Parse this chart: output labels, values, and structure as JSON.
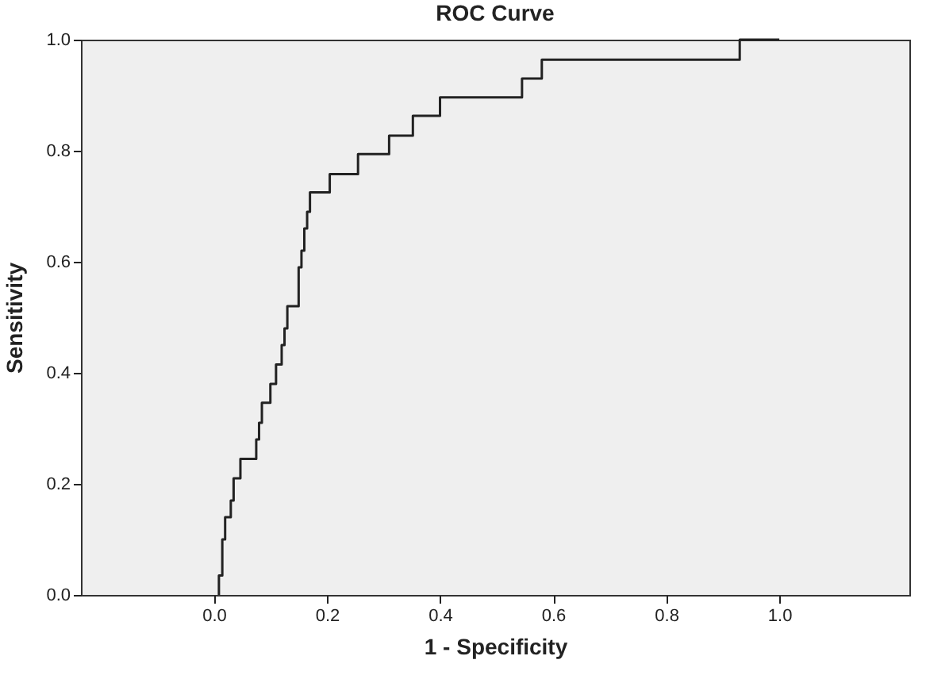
{
  "chart_data": {
    "type": "step",
    "title": "ROC Curve",
    "xlabel": "1 - Specificity",
    "ylabel": "Sensitivity",
    "x": [
      0.009,
      0.009,
      0.015,
      0.015,
      0.02,
      0.03,
      0.035,
      0.047,
      0.073,
      0.075,
      0.08,
      0.085,
      0.097,
      0.1,
      0.11,
      0.115,
      0.12,
      0.125,
      0.13,
      0.148,
      0.15,
      0.155,
      0.16,
      0.165,
      0.17,
      0.2,
      0.205,
      0.25,
      0.255,
      0.3,
      0.31,
      0.327,
      0.352,
      0.377,
      0.4,
      0.536,
      0.545,
      0.556,
      0.58,
      0.92,
      0.93,
      1
    ],
    "series": [
      {
        "color": "#222222",
        "values": [
          0,
          0.035,
          0.035,
          0.1,
          0.14,
          0.17,
          0.21,
          0.245,
          0.245,
          0.28,
          0.31,
          0.346,
          0.346,
          0.38,
          0.415,
          0.415,
          0.45,
          0.48,
          0.52,
          0.52,
          0.59,
          0.62,
          0.66,
          0.69,
          0.725,
          0.725,
          0.758,
          0.758,
          0.794,
          0.794,
          0.827,
          0.827,
          0.863,
          0.863,
          0.896,
          0.896,
          0.93,
          0.93,
          0.964,
          0.964,
          1,
          1
        ]
      }
    ],
    "xlim": [
      -0.235,
      1.23
    ],
    "ylim": [
      0,
      1
    ],
    "xticks": [
      {
        "value": 0,
        "label": "0.0"
      },
      {
        "value": 0.2,
        "label": "0.2"
      },
      {
        "value": 0.4,
        "label": "0.4"
      },
      {
        "value": 0.6,
        "label": "0.6"
      },
      {
        "value": 0.8,
        "label": "0.8"
      },
      {
        "value": 1,
        "label": "1.0"
      }
    ],
    "yticks": [
      {
        "value": 0,
        "label": "0.0"
      },
      {
        "value": 0.2,
        "label": "0.2"
      },
      {
        "value": 0.4,
        "label": "0.4"
      },
      {
        "value": 0.6,
        "label": "0.6"
      },
      {
        "value": 0.8,
        "label": "0.8"
      },
      {
        "value": 1,
        "label": "1.0"
      }
    ],
    "grid": false,
    "marker": "none",
    "line_style": "solid"
  }
}
